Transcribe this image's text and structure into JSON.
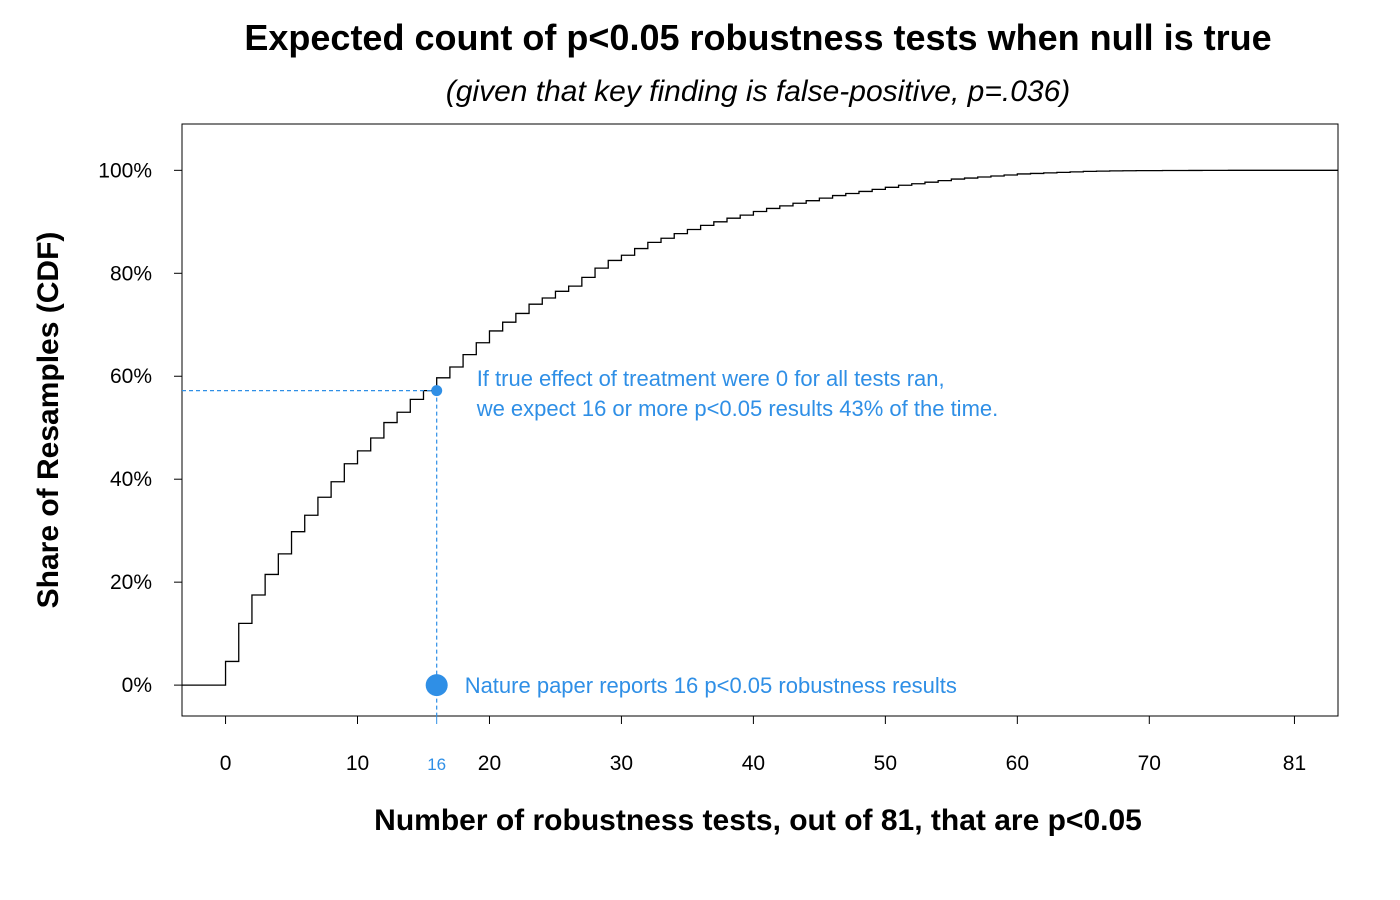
{
  "chart_data": {
    "type": "step",
    "title": "Expected count of p<0.05 robustness tests when null is true",
    "subtitle": "(given that key finding is false-positive, p=.036)",
    "xlabel": "Number of robustness tests, out of 81, that are p<0.05",
    "ylabel": "Share of Resamples (CDF)",
    "xlim": [
      -3.3,
      84.3
    ],
    "ylim": [
      -0.06,
      1.09
    ],
    "x_ticks": [
      0,
      10,
      20,
      30,
      40,
      50,
      60,
      70,
      81
    ],
    "x_tick_labels": [
      "0",
      "10",
      "20",
      "30",
      "40",
      "50",
      "60",
      "70",
      "81"
    ],
    "x_highlight_tick": {
      "value": 16,
      "label": "16"
    },
    "y_ticks": [
      0,
      0.2,
      0.4,
      0.6,
      0.8,
      1.0
    ],
    "y_tick_labels": [
      "0%",
      "20%",
      "40%",
      "60%",
      "80%",
      "100%"
    ],
    "grid": false,
    "highlight_color": "#2f8fe6",
    "line_color": "#000000",
    "cdf": {
      "x": [
        0,
        1,
        2,
        3,
        4,
        5,
        6,
        7,
        8,
        9,
        10,
        11,
        12,
        13,
        14,
        15,
        16,
        17,
        18,
        19,
        20,
        21,
        22,
        23,
        24,
        25,
        26,
        27,
        28,
        29,
        30,
        31,
        32,
        33,
        34,
        35,
        36,
        37,
        38,
        39,
        40,
        41,
        42,
        43,
        44,
        45,
        46,
        47,
        48,
        49,
        50,
        51,
        52,
        53,
        54,
        55,
        56,
        57,
        58,
        59,
        60,
        61,
        62,
        63,
        64,
        65,
        66,
        67,
        68,
        69,
        70,
        71,
        72,
        73,
        74,
        75,
        76,
        77,
        78,
        79,
        80,
        81
      ],
      "y": [
        0.046,
        0.12,
        0.175,
        0.215,
        0.255,
        0.298,
        0.33,
        0.365,
        0.395,
        0.43,
        0.455,
        0.48,
        0.51,
        0.53,
        0.555,
        0.572,
        0.597,
        0.618,
        0.642,
        0.665,
        0.688,
        0.705,
        0.722,
        0.74,
        0.752,
        0.765,
        0.775,
        0.792,
        0.81,
        0.825,
        0.835,
        0.848,
        0.86,
        0.868,
        0.877,
        0.885,
        0.893,
        0.9,
        0.907,
        0.913,
        0.92,
        0.926,
        0.931,
        0.936,
        0.941,
        0.946,
        0.951,
        0.955,
        0.959,
        0.963,
        0.967,
        0.971,
        0.974,
        0.977,
        0.98,
        0.983,
        0.985,
        0.987,
        0.989,
        0.991,
        0.993,
        0.994,
        0.995,
        0.996,
        0.997,
        0.998,
        0.9985,
        0.999,
        0.9992,
        0.9994,
        0.9995,
        0.9996,
        0.9997,
        0.9998,
        0.9999,
        0.9999,
        1.0,
        1.0,
        1.0,
        1.0,
        1.0,
        1.0
      ],
      "x_start": -3.3,
      "x_end": 84.3
    },
    "annotations": [
      {
        "type": "point_with_guides",
        "x": 16,
        "y": 0.572,
        "text_lines": [
          "If true effect of treatment were 0 for all tests ran,",
          "we expect 16 or more p<0.05 results 43% of the time."
        ]
      },
      {
        "type": "marker",
        "x": 16,
        "y": 0,
        "text": "Nature paper reports 16 p<0.05 robustness results"
      }
    ]
  }
}
